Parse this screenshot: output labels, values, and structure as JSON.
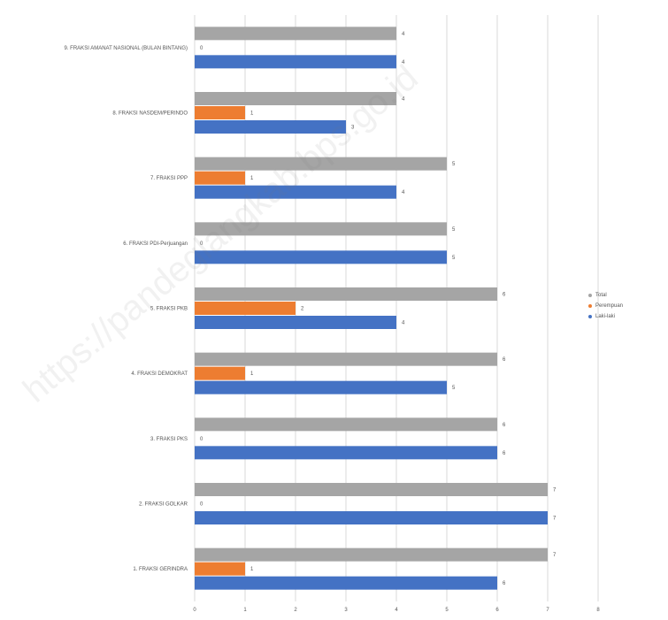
{
  "chart_data": {
    "type": "bar",
    "orientation": "horizontal",
    "categories": [
      "1. FRAKSI GERINDRA",
      "2. FRAKSI GOLKAR",
      "3. FRAKSI PKS",
      "4. FRAKSI DEMOKRAT",
      "5. FRAKSI PKB",
      "6. FRAKSI PDI-Perjuangan",
      "7. FRAKSI PPP",
      "8. FRAKSI NASDEM/PERINDO",
      "9. FRAKSI AMANAT NASIONAL (BULAN BINTANG)"
    ],
    "series": [
      {
        "name": "Laki-laki",
        "values": [
          6,
          7,
          6,
          5,
          4,
          5,
          4,
          3,
          4
        ]
      },
      {
        "name": "Perempuan",
        "values": [
          1,
          0,
          0,
          1,
          2,
          0,
          1,
          1,
          0
        ]
      },
      {
        "name": "Total",
        "values": [
          7,
          7,
          6,
          6,
          6,
          5,
          5,
          4,
          4
        ]
      }
    ],
    "xlim": [
      0,
      8
    ],
    "xticks": [
      "0",
      "1",
      "2",
      "3",
      "4",
      "5",
      "6",
      "7",
      "8"
    ],
    "grid": true,
    "legend_position": "right"
  },
  "colors": {
    "Laki-laki": "#4472C4",
    "Perempuan": "#ED7D31",
    "Total": "#A5A5A5",
    "grid": "#d9d9d9"
  },
  "legend": [
    {
      "label": "Total",
      "series": "Total"
    },
    {
      "label": "Perempuan",
      "series": "Perempuan"
    },
    {
      "label": "Laki-laki",
      "series": "Laki-laki"
    }
  ],
  "watermark": "https://pandeglangkab.bps.go.id"
}
